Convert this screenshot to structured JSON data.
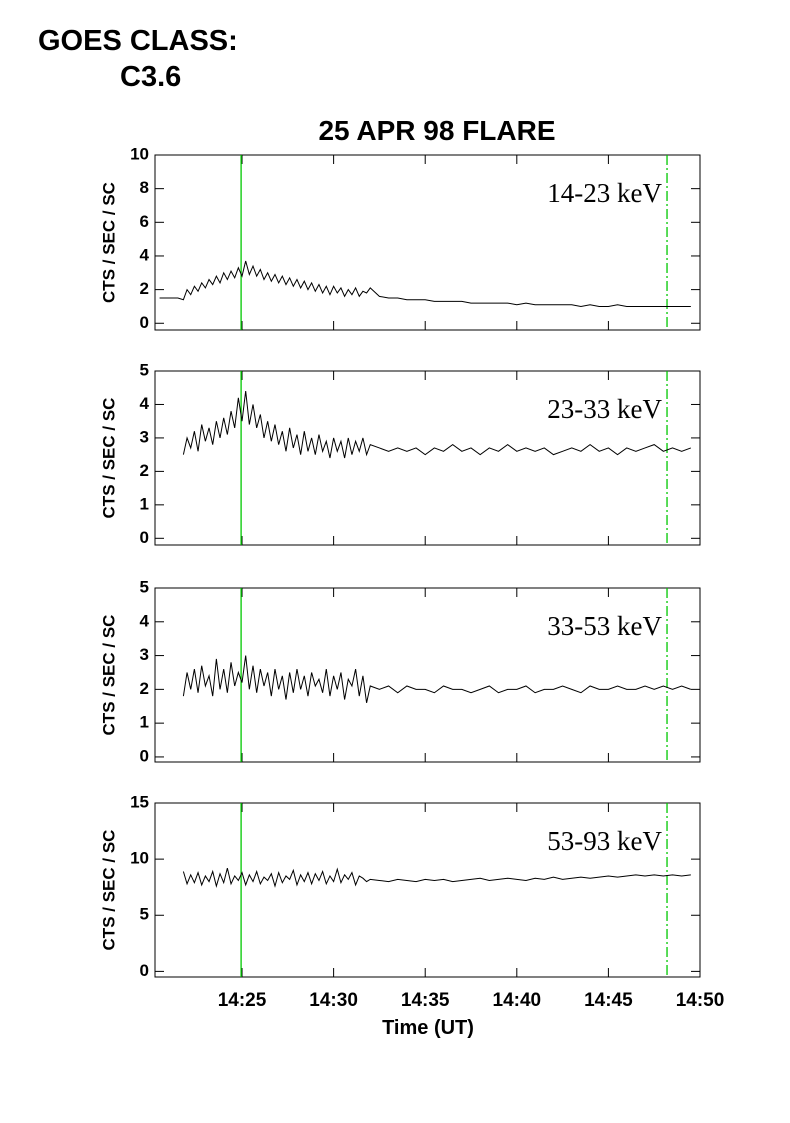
{
  "header": {
    "goes_label": "GOES CLASS:",
    "goes_class": "C3.6"
  },
  "chart_data": {
    "type": "line",
    "title": "25 APR 98 FLARE",
    "xlabel": "Time (UT)",
    "xlim": [
      20.25,
      50
    ],
    "xticks": [
      {
        "value": 25,
        "label": "14:25"
      },
      {
        "value": 30,
        "label": "14:30"
      },
      {
        "value": 35,
        "label": "14:35"
      },
      {
        "value": 40,
        "label": "14:40"
      },
      {
        "value": 45,
        "label": "14:45"
      },
      {
        "value": 50,
        "label": "14:50"
      }
    ],
    "markers": [
      {
        "x": 24.95,
        "color": "#00c800",
        "style": "solid"
      },
      {
        "x": 48.2,
        "color": "#00c800",
        "style": "dashdot"
      }
    ],
    "color": "#000000",
    "x": [
      20.5,
      21.0,
      21.5,
      21.8,
      22,
      22.2,
      22.4,
      22.6,
      22.8,
      23,
      23.2,
      23.4,
      23.6,
      23.8,
      24,
      24.2,
      24.4,
      24.6,
      24.8,
      25,
      25.2,
      25.4,
      25.6,
      25.8,
      26,
      26.2,
      26.4,
      26.6,
      26.8,
      27,
      27.2,
      27.4,
      27.6,
      27.8,
      28,
      28.2,
      28.4,
      28.6,
      28.8,
      29,
      29.2,
      29.4,
      29.6,
      29.8,
      30,
      30.2,
      30.4,
      30.6,
      30.8,
      31,
      31.2,
      31.4,
      31.6,
      31.8,
      32,
      32.5,
      33,
      33.5,
      34,
      34.5,
      35,
      35.5,
      36,
      36.5,
      37,
      37.5,
      38,
      38.5,
      39,
      39.5,
      40,
      40.5,
      41,
      41.5,
      42,
      42.5,
      43,
      43.5,
      44,
      44.5,
      45,
      45.5,
      46,
      46.5,
      47,
      47.5,
      48,
      48.5,
      49,
      49.5
    ],
    "panels": [
      {
        "label": "14-23 keV",
        "ylabel": "CTS / SEC / SC",
        "ylim": [
          -0.4,
          10
        ],
        "yticks": [
          0,
          2,
          4,
          6,
          8,
          10
        ],
        "values": [
          1.5,
          1.5,
          1.5,
          1.4,
          2.0,
          1.7,
          2.2,
          1.9,
          2.4,
          2.1,
          2.6,
          2.3,
          2.8,
          2.4,
          3.0,
          2.6,
          3.1,
          2.7,
          3.3,
          2.8,
          3.7,
          2.9,
          3.4,
          2.8,
          3.2,
          2.6,
          3.0,
          2.5,
          2.9,
          2.4,
          2.8,
          2.3,
          2.7,
          2.2,
          2.6,
          2.1,
          2.5,
          2.0,
          2.4,
          1.9,
          2.3,
          1.8,
          2.2,
          1.7,
          2.2,
          1.8,
          2.1,
          1.6,
          2.0,
          1.7,
          2.1,
          1.6,
          1.9,
          1.8,
          2.1,
          1.6,
          1.5,
          1.5,
          1.4,
          1.4,
          1.4,
          1.3,
          1.3,
          1.3,
          1.3,
          1.2,
          1.2,
          1.2,
          1.2,
          1.2,
          1.1,
          1.2,
          1.1,
          1.1,
          1.1,
          1.1,
          1.1,
          1.0,
          1.1,
          1.0,
          1.0,
          1.1,
          1.0,
          1.0,
          1.0,
          1.0,
          1.0,
          1.0,
          1.0,
          1.0
        ]
      },
      {
        "label": "23-33 keV",
        "ylabel": "CTS / SEC / SC",
        "ylim": [
          -0.2,
          5
        ],
        "yticks": [
          0,
          1,
          2,
          3,
          4,
          5
        ],
        "values": [
          null,
          null,
          null,
          2.5,
          3.0,
          2.7,
          3.2,
          2.6,
          3.4,
          2.9,
          3.3,
          2.8,
          3.5,
          3.0,
          3.6,
          3.1,
          3.8,
          3.3,
          4.2,
          3.5,
          4.4,
          3.4,
          4.0,
          3.3,
          3.7,
          3.0,
          3.5,
          2.9,
          3.4,
          2.8,
          3.2,
          2.6,
          3.3,
          2.7,
          3.1,
          2.5,
          3.2,
          2.6,
          3.0,
          2.5,
          3.1,
          2.6,
          2.9,
          2.4,
          3.0,
          2.6,
          2.9,
          2.4,
          3.0,
          2.5,
          2.9,
          2.6,
          3.0,
          2.5,
          2.8,
          2.7,
          2.6,
          2.7,
          2.6,
          2.7,
          2.5,
          2.7,
          2.6,
          2.8,
          2.6,
          2.7,
          2.5,
          2.7,
          2.6,
          2.8,
          2.6,
          2.7,
          2.6,
          2.7,
          2.5,
          2.6,
          2.7,
          2.6,
          2.8,
          2.6,
          2.7,
          2.5,
          2.7,
          2.6,
          2.7,
          2.8,
          2.6,
          2.7,
          2.6,
          2.7
        ]
      },
      {
        "label": "33-53 keV",
        "ylabel": "CTS / SEC / SC",
        "ylim": [
          -0.15,
          5
        ],
        "yticks": [
          0,
          1,
          2,
          3,
          4,
          5
        ],
        "values": [
          null,
          null,
          null,
          1.8,
          2.5,
          2.0,
          2.6,
          1.9,
          2.7,
          2.1,
          2.4,
          1.8,
          2.9,
          2.0,
          2.6,
          1.9,
          2.8,
          2.1,
          2.5,
          2.2,
          3.0,
          2.0,
          2.7,
          1.9,
          2.6,
          2.1,
          2.5,
          1.8,
          2.6,
          2.0,
          2.4,
          1.7,
          2.5,
          1.9,
          2.6,
          2.0,
          2.4,
          1.8,
          2.5,
          2.1,
          2.3,
          1.9,
          2.6,
          1.8,
          2.4,
          2.0,
          2.5,
          1.7,
          2.3,
          2.1,
          2.6,
          1.8,
          2.4,
          1.6,
          2.1,
          2.0,
          2.1,
          1.9,
          2.1,
          2.0,
          2.0,
          1.9,
          2.1,
          2.0,
          2.0,
          1.9,
          2.0,
          2.1,
          1.9,
          2.0,
          2.0,
          2.1,
          1.9,
          2.0,
          2.0,
          2.1,
          2.0,
          1.9,
          2.1,
          2.0,
          2.0,
          2.1,
          2.0,
          2.0,
          2.1,
          2.0,
          2.1,
          2.0,
          2.1,
          2.0
        ]
      },
      {
        "label": "53-93 keV",
        "ylabel": "CTS / SEC / SC",
        "ylim": [
          -0.5,
          15
        ],
        "yticks": [
          0,
          5,
          10,
          15
        ],
        "values": [
          null,
          null,
          null,
          8.9,
          7.8,
          8.6,
          7.9,
          8.8,
          7.7,
          8.5,
          8.0,
          8.9,
          7.6,
          8.7,
          7.9,
          9.2,
          7.8,
          8.5,
          8.1,
          8.8,
          7.7,
          8.6,
          8.0,
          8.9,
          7.8,
          8.4,
          8.1,
          8.7,
          7.6,
          8.8,
          7.9,
          8.5,
          8.2,
          9.0,
          7.7,
          8.6,
          8.0,
          8.8,
          7.8,
          8.7,
          8.1,
          8.9,
          7.8,
          8.5,
          8.0,
          9.1,
          7.9,
          8.6,
          8.2,
          8.8,
          7.7,
          8.5,
          8.3,
          8.0,
          8.2,
          8.1,
          8.0,
          8.2,
          8.1,
          8.0,
          8.2,
          8.1,
          8.2,
          8.0,
          8.1,
          8.2,
          8.3,
          8.1,
          8.2,
          8.3,
          8.2,
          8.1,
          8.3,
          8.2,
          8.4,
          8.2,
          8.3,
          8.4,
          8.3,
          8.4,
          8.5,
          8.4,
          8.5,
          8.6,
          8.5,
          8.6,
          8.5,
          8.6,
          8.5,
          8.6
        ]
      }
    ]
  }
}
